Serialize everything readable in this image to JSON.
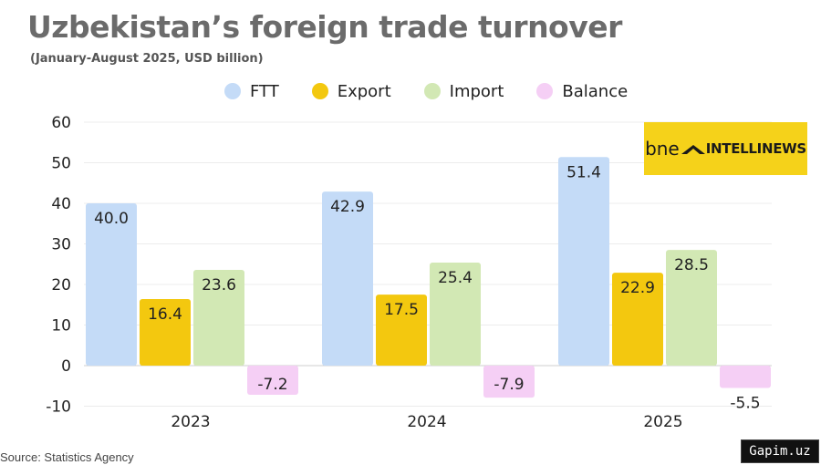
{
  "title": "Uzbekistan’s foreign trade turnover",
  "subtitle": "(January-August 2025, USD billion)",
  "brand": {
    "prefix": "bne",
    "name": "INTELLINEWS",
    "color": "#f5d21a"
  },
  "source": "Source: Statistics Agency",
  "watermark": "Gapim.uz",
  "chart_data": {
    "type": "bar",
    "categories": [
      "2023",
      "2024",
      "2025"
    ],
    "series": [
      {
        "name": "FTT",
        "values": [
          40.0,
          42.9,
          51.4
        ],
        "color": "#c4dbf7"
      },
      {
        "name": "Export",
        "values": [
          16.4,
          17.5,
          22.9
        ],
        "color": "#f3c80f"
      },
      {
        "name": "Import",
        "values": [
          23.6,
          25.4,
          28.5
        ],
        "color": "#d2e8b4"
      },
      {
        "name": "Balance",
        "values": [
          -7.2,
          -7.9,
          -5.5
        ],
        "color": "#f5cff5"
      }
    ],
    "value_labels": [
      [
        "40.0",
        "42.9",
        "51.4"
      ],
      [
        "16.4",
        "17.5",
        "22.9"
      ],
      [
        "23.6",
        "25.4",
        "28.5"
      ],
      [
        "-7.2",
        "-7.9",
        "-5.5"
      ]
    ],
    "yticks": [
      "-10",
      "0",
      "10",
      "20",
      "30",
      "40",
      "50",
      "60"
    ],
    "ylim": [
      -10,
      60
    ],
    "grid": true,
    "legend_position": "top"
  }
}
